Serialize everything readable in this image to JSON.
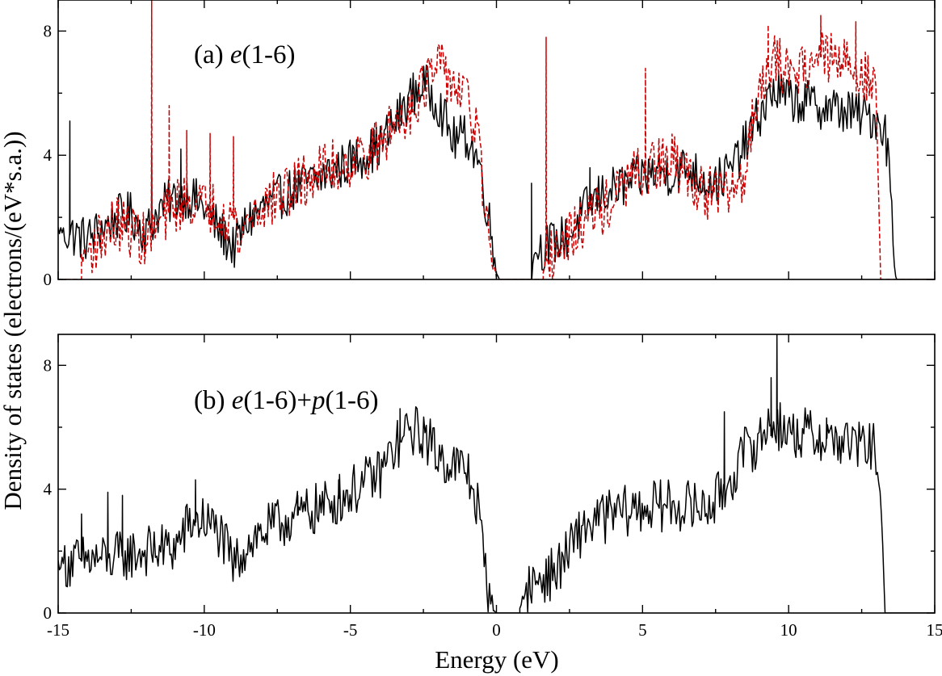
{
  "chart_data": {
    "type": "line",
    "x_axis": {
      "label": "Energy (eV)",
      "range": [
        -15,
        15
      ],
      "ticks": [
        -15,
        -10,
        -5,
        0,
        5,
        10,
        15
      ],
      "tick_labels": [
        "-15",
        "-10",
        "-5",
        "0",
        "5",
        "10",
        "15"
      ]
    },
    "y_axis": {
      "label": "Density of states (electrons/(eV*s.a.))",
      "shared": true
    },
    "panels": [
      {
        "id": "a",
        "label_prefix": "(a) ",
        "label_math": [
          {
            "t": "e",
            "i": true
          },
          {
            "t": "(1-6)",
            "i": false
          }
        ],
        "ylim": [
          0,
          9
        ],
        "y_ticks": [
          0,
          4,
          8
        ],
        "y_tick_labels": [
          "0",
          "4",
          "8"
        ],
        "series": [
          {
            "name": "solid",
            "color": "#000000",
            "dash": "none",
            "segments": [
              [
                [
                  -15,
                  1.6
                ],
                [
                  -14,
                  1.3
                ],
                [
                  -13,
                  2.0
                ],
                [
                  -12.5,
                  2.1
                ],
                [
                  -12,
                  1.5
                ],
                [
                  -11.5,
                  2.3
                ],
                [
                  -11,
                  2.6
                ],
                [
                  -10.5,
                  2.7
                ],
                [
                  -10,
                  2.3
                ],
                [
                  -9.5,
                  1.6
                ],
                [
                  -9,
                  1.0
                ],
                [
                  -8.5,
                  1.9
                ],
                [
                  -8,
                  2.3
                ],
                [
                  -7,
                  2.9
                ],
                [
                  -6,
                  3.3
                ],
                [
                  -5,
                  3.8
                ],
                [
                  -4,
                  4.3
                ],
                [
                  -3.5,
                  5.0
                ],
                [
                  -3,
                  5.8
                ],
                [
                  -2.5,
                  6.3
                ],
                [
                  -2,
                  5.7
                ],
                [
                  -1.5,
                  4.5
                ],
                [
                  -1,
                  4.6
                ],
                [
                  -0.6,
                  3.8
                ],
                [
                  -0.3,
                  2.2
                ],
                [
                  0,
                  0.3
                ],
                [
                  0.1,
                  0
                ]
              ],
              [
                [
                  1.2,
                  0
                ],
                [
                  1.3,
                  0.9
                ],
                [
                  2,
                  1.2
                ],
                [
                  2.5,
                  1.4
                ],
                [
                  3,
                  2.2
                ],
                [
                  3.5,
                  2.7
                ],
                [
                  4,
                  2.9
                ],
                [
                  5,
                  3.3
                ],
                [
                  5.5,
                  3.5
                ],
                [
                  6,
                  3.4
                ],
                [
                  6.5,
                  3.6
                ],
                [
                  7,
                  3.3
                ],
                [
                  7.5,
                  3.1
                ],
                [
                  8,
                  3.5
                ],
                [
                  8.5,
                  4.3
                ],
                [
                  9,
                  5.3
                ],
                [
                  9.5,
                  6.1
                ],
                [
                  10,
                  5.8
                ],
                [
                  10.5,
                  5.7
                ],
                [
                  11,
                  5.6
                ],
                [
                  12,
                  5.4
                ],
                [
                  13,
                  5.2
                ],
                [
                  13.3,
                  4.8
                ],
                [
                  13.5,
                  3.2
                ],
                [
                  13.6,
                  0.5
                ],
                [
                  13.7,
                  0
                ]
              ]
            ],
            "noise": 0.75,
            "spikes": [
              [
                -14.6,
                5.1
              ],
              [
                -11.8,
                4.2
              ],
              [
                -10.8,
                4.2
              ],
              [
                1.2,
                3.1
              ],
              [
                3.2,
                3.6
              ]
            ]
          },
          {
            "name": "dashed",
            "color": "#cc0000",
            "dash": "6,3",
            "segments": [
              [
                [
                  -14.2,
                  0.7
                ],
                [
                  -13.5,
                  1.4
                ],
                [
                  -13,
                  1.8
                ],
                [
                  -12.5,
                  1.6
                ],
                [
                  -12,
                  1.2
                ],
                [
                  -11.5,
                  1.8
                ],
                [
                  -11,
                  2.4
                ],
                [
                  -10.5,
                  2.6
                ],
                [
                  -10,
                  2.3
                ],
                [
                  -9.5,
                  2.3
                ],
                [
                  -9,
                  2.0
                ],
                [
                  -8.8,
                  1.2
                ],
                [
                  -8.5,
                  2.0
                ],
                [
                  -8,
                  2.4
                ],
                [
                  -7,
                  2.9
                ],
                [
                  -6,
                  3.5
                ],
                [
                  -5,
                  3.8
                ],
                [
                  -4,
                  4.3
                ],
                [
                  -3.5,
                  5.0
                ],
                [
                  -3,
                  5.5
                ],
                [
                  -2.5,
                  6.2
                ],
                [
                  -2,
                  6.8
                ],
                [
                  -1.5,
                  6.4
                ],
                [
                  -1,
                  5.7
                ],
                [
                  -0.6,
                  4.5
                ],
                [
                  -0.4,
                  2.2
                ],
                [
                  -0.2,
                  0.5
                ],
                [
                  0,
                  0
                ]
              ],
              [
                [
                  1.6,
                  0
                ],
                [
                  1.7,
                  0.6
                ],
                [
                  2,
                  0.9
                ],
                [
                  2.5,
                  1.3
                ],
                [
                  3,
                  1.9
                ],
                [
                  3.5,
                  2.2
                ],
                [
                  4,
                  2.5
                ],
                [
                  4.5,
                  3.2
                ],
                [
                  5,
                  3.4
                ],
                [
                  5.5,
                  3.7
                ],
                [
                  6,
                  3.8
                ],
                [
                  6.5,
                  3.4
                ],
                [
                  7,
                  2.9
                ],
                [
                  7.5,
                  2.7
                ],
                [
                  8,
                  2.8
                ],
                [
                  8.5,
                  3.4
                ],
                [
                  9,
                  6.5
                ],
                [
                  9.5,
                  7.0
                ],
                [
                  10,
                  6.7
                ],
                [
                  10.5,
                  6.9
                ],
                [
                  11,
                  7.2
                ],
                [
                  12,
                  6.9
                ],
                [
                  12.5,
                  6.7
                ],
                [
                  13,
                  6.0
                ],
                [
                  13.1,
                  1.8
                ],
                [
                  13.15,
                  0
                ]
              ]
            ],
            "noise": 0.9,
            "spikes": [
              [
                -11.8,
                9.0
              ],
              [
                -11.2,
                5.6
              ],
              [
                -10.6,
                4.8
              ],
              [
                -9.8,
                4.7
              ],
              [
                -9.0,
                4.6
              ],
              [
                1.7,
                7.8
              ],
              [
                5.1,
                6.8
              ],
              [
                9.3,
                8.2
              ],
              [
                11.1,
                8.5
              ],
              [
                12.3,
                8.3
              ]
            ]
          }
        ]
      },
      {
        "id": "b",
        "label_prefix": "(b) ",
        "label_math": [
          {
            "t": "e",
            "i": true
          },
          {
            "t": "(1-6)+",
            "i": false
          },
          {
            "t": "p",
            "i": true
          },
          {
            "t": "(1-6)",
            "i": false
          }
        ],
        "ylim": [
          0,
          9
        ],
        "y_ticks": [
          0,
          4,
          8
        ],
        "y_tick_labels": [
          "0",
          "4",
          "8"
        ],
        "series": [
          {
            "name": "solid",
            "color": "#000000",
            "dash": "none",
            "segments": [
              [
                [
                  -15,
                  1.6
                ],
                [
                  -14,
                  1.7
                ],
                [
                  -13,
                  1.8
                ],
                [
                  -12,
                  2.0
                ],
                [
                  -11,
                  2.1
                ],
                [
                  -10.5,
                  2.9
                ],
                [
                  -10,
                  3.0
                ],
                [
                  -9.5,
                  2.6
                ],
                [
                  -9,
                  1.5
                ],
                [
                  -8.5,
                  2.3
                ],
                [
                  -8,
                  2.6
                ],
                [
                  -7,
                  3.1
                ],
                [
                  -6,
                  3.4
                ],
                [
                  -5,
                  3.9
                ],
                [
                  -4,
                  4.5
                ],
                [
                  -3.5,
                  5.3
                ],
                [
                  -3,
                  5.9
                ],
                [
                  -2.5,
                  5.8
                ],
                [
                  -2,
                  5.1
                ],
                [
                  -1.5,
                  4.8
                ],
                [
                  -1,
                  4.6
                ],
                [
                  -0.6,
                  3.3
                ],
                [
                  -0.4,
                  1.4
                ],
                [
                  -0.2,
                  0.5
                ],
                [
                  0,
                  0
                ]
              ],
              [
                [
                  0.8,
                  0
                ],
                [
                  1,
                  0.8
                ],
                [
                  1.5,
                  1.1
                ],
                [
                  2,
                  1.3
                ],
                [
                  2.5,
                  2.0
                ],
                [
                  3,
                  2.8
                ],
                [
                  3.5,
                  3.0
                ],
                [
                  4,
                  3.2
                ],
                [
                  5,
                  3.4
                ],
                [
                  6,
                  3.5
                ],
                [
                  7,
                  3.4
                ],
                [
                  7.5,
                  3.6
                ],
                [
                  8,
                  4.3
                ],
                [
                  8.5,
                  5.2
                ],
                [
                  9,
                  5.6
                ],
                [
                  9.5,
                  6.2
                ],
                [
                  10,
                  5.8
                ],
                [
                  10.5,
                  5.8
                ],
                [
                  11,
                  5.7
                ],
                [
                  12,
                  5.5
                ],
                [
                  13,
                  5.3
                ],
                [
                  13.1,
                  4.5
                ],
                [
                  13.2,
                  2.5
                ],
                [
                  13.3,
                  0
                ]
              ]
            ],
            "noise": 0.85,
            "spikes": [
              [
                -14.2,
                3.2
              ],
              [
                -13.3,
                3.9
              ],
              [
                -12.8,
                3.8
              ],
              [
                -10.3,
                4.3
              ],
              [
                -6.8,
                3.8
              ],
              [
                -5.4,
                4.3
              ],
              [
                -3.3,
                6.6
              ],
              [
                7.8,
                6.5
              ],
              [
                9.4,
                7.6
              ],
              [
                9.6,
                9.0
              ],
              [
                11.3,
                6.3
              ]
            ]
          }
        ]
      }
    ]
  }
}
